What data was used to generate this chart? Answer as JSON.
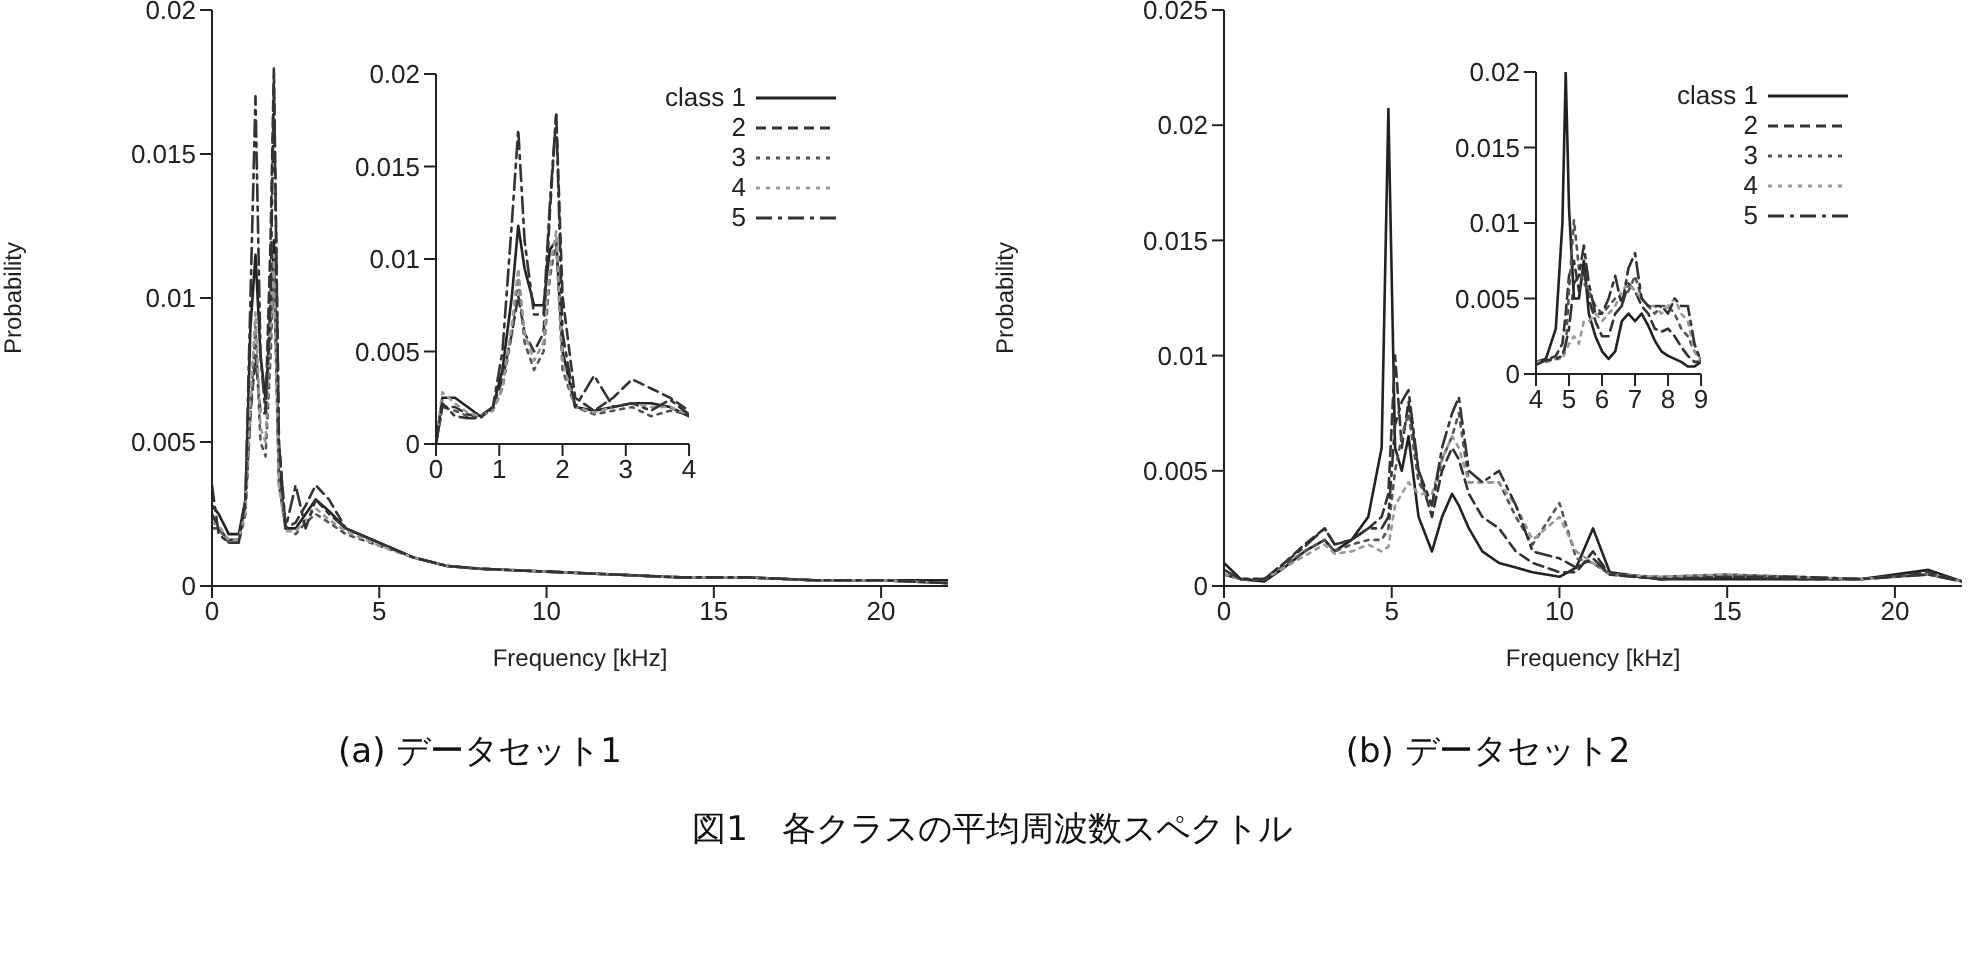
{
  "chart_data": [
    {
      "type": "line",
      "xlabel": "Frequency [kHz]",
      "ylabel": "Probability",
      "xlim": [
        0,
        22
      ],
      "xticks": [
        0,
        5,
        10,
        15,
        20
      ],
      "ylim": [
        0,
        0.02
      ],
      "yticks": [
        0,
        0.005,
        0.01,
        0.015,
        0.02
      ],
      "legend": false,
      "marker": "none",
      "annotations": [
        "(a) データセット1",
        "図1　各クラスの平均周波数スペクトル"
      ],
      "x": [
        0,
        0.2,
        0.5,
        0.8,
        1.0,
        1.15,
        1.3,
        1.45,
        1.6,
        1.75,
        1.85,
        2.0,
        2.2,
        2.5,
        2.8,
        3.1,
        3.5,
        4,
        5,
        6,
        7,
        8,
        10,
        12,
        14,
        16,
        18,
        20,
        22
      ],
      "series": [
        {
          "color": "#222222",
          "line_style": "solid",
          "values": [
            0.0028,
            0.0025,
            0.0018,
            0.0018,
            0.003,
            0.009,
            0.0115,
            0.008,
            0.0065,
            0.009,
            0.012,
            0.004,
            0.002,
            0.002,
            0.0025,
            0.003,
            0.0026,
            0.002,
            0.0015,
            0.001,
            0.0007,
            0.0006,
            0.0005,
            0.0004,
            0.0003,
            0.0003,
            0.0002,
            0.0002,
            0.0002
          ]
        },
        {
          "color": "#333333",
          "line_style": "dashed",
          "values": [
            0.0025,
            0.002,
            0.0016,
            0.0016,
            0.0028,
            0.006,
            0.008,
            0.006,
            0.006,
            0.012,
            0.018,
            0.005,
            0.002,
            0.0022,
            0.0028,
            0.0035,
            0.003,
            0.002,
            0.0015,
            0.001,
            0.0007,
            0.0006,
            0.0005,
            0.0004,
            0.0003,
            0.0003,
            0.0002,
            0.0002,
            0.0001
          ]
        },
        {
          "color": "#555555",
          "line_style": "dotted",
          "values": [
            0.002,
            0.002,
            0.0015,
            0.0015,
            0.0025,
            0.006,
            0.009,
            0.005,
            0.0045,
            0.008,
            0.011,
            0.0035,
            0.002,
            0.0018,
            0.0022,
            0.0025,
            0.0022,
            0.0018,
            0.0014,
            0.001,
            0.0007,
            0.0006,
            0.0005,
            0.0004,
            0.0003,
            0.0003,
            0.0002,
            0.0002,
            0.0001
          ]
        },
        {
          "color": "#999999",
          "line_style": "dotted",
          "values": [
            0.0022,
            0.0021,
            0.0016,
            0.0016,
            0.0026,
            0.0065,
            0.0095,
            0.0055,
            0.005,
            0.009,
            0.0115,
            0.0035,
            0.0019,
            0.0019,
            0.0023,
            0.0027,
            0.0023,
            0.0019,
            0.0014,
            0.001,
            0.0007,
            0.0006,
            0.0005,
            0.0004,
            0.0003,
            0.0003,
            0.0002,
            0.0002,
            0.0001
          ]
        },
        {
          "color": "#333333",
          "line_style": "dashdot",
          "values": [
            0.0035,
            0.0018,
            0.0015,
            0.0015,
            0.003,
            0.01,
            0.017,
            0.008,
            0.006,
            0.01,
            0.0175,
            0.005,
            0.002,
            0.0035,
            0.002,
            0.003,
            0.0025,
            0.002,
            0.0015,
            0.001,
            0.0007,
            0.0006,
            0.0005,
            0.0004,
            0.0003,
            0.0003,
            0.0002,
            0.0002,
            0.0001
          ]
        }
      ]
    },
    {
      "type": "line",
      "xlim": [
        0,
        4
      ],
      "xticks": [
        0,
        1,
        2,
        3,
        4
      ],
      "ylim": [
        0,
        0.02
      ],
      "yticks": [
        0,
        0.005,
        0.01,
        0.015,
        0.02
      ],
      "legend": "top right",
      "marker": "none",
      "x": [
        0,
        0.1,
        0.3,
        0.5,
        0.7,
        0.9,
        1.05,
        1.2,
        1.3,
        1.4,
        1.55,
        1.7,
        1.8,
        1.9,
        2.0,
        2.2,
        2.5,
        2.8,
        3.1,
        3.4,
        3.7,
        4
      ],
      "series": [
        {
          "name": "class 1",
          "color": "#222222",
          "line_style": "solid",
          "values": [
            0,
            0.0025,
            0.0025,
            0.002,
            0.0015,
            0.002,
            0.004,
            0.008,
            0.0118,
            0.0095,
            0.0075,
            0.0075,
            0.0105,
            0.011,
            0.005,
            0.002,
            0.0018,
            0.002,
            0.0022,
            0.0022,
            0.002,
            0.0015
          ]
        },
        {
          "name": "2",
          "color": "#333333",
          "line_style": "dashed",
          "values": [
            0,
            0.002,
            0.002,
            0.0016,
            0.0015,
            0.002,
            0.0035,
            0.006,
            0.008,
            0.006,
            0.005,
            0.006,
            0.0125,
            0.0178,
            0.008,
            0.0025,
            0.0018,
            0.0025,
            0.0035,
            0.003,
            0.0025,
            0.0018
          ]
        },
        {
          "name": "3",
          "color": "#555555",
          "line_style": "dotted",
          "values": [
            0,
            0.002,
            0.0018,
            0.0015,
            0.0015,
            0.0018,
            0.003,
            0.006,
            0.009,
            0.0055,
            0.004,
            0.005,
            0.009,
            0.011,
            0.004,
            0.002,
            0.0016,
            0.0018,
            0.002,
            0.0015,
            0.0018,
            0.0016
          ]
        },
        {
          "name": "4",
          "color": "#999999",
          "line_style": "dotted",
          "values": [
            0,
            0.0028,
            0.0022,
            0.0017,
            0.0015,
            0.0018,
            0.003,
            0.0065,
            0.0095,
            0.006,
            0.0045,
            0.0055,
            0.0095,
            0.0115,
            0.0045,
            0.002,
            0.0017,
            0.002,
            0.0022,
            0.002,
            0.002,
            0.0016
          ]
        },
        {
          "name": "5",
          "color": "#333333",
          "line_style": "dashdot",
          "values": [
            0,
            0.0022,
            0.0015,
            0.0014,
            0.0014,
            0.002,
            0.005,
            0.012,
            0.017,
            0.011,
            0.007,
            0.007,
            0.013,
            0.0178,
            0.006,
            0.002,
            0.0037,
            0.002,
            0.0022,
            0.0018,
            0.0024,
            0.0016
          ]
        }
      ]
    },
    {
      "type": "line",
      "xlabel": "Frequency [kHz]",
      "ylabel": "Probability",
      "xlim": [
        0,
        22
      ],
      "xticks": [
        0,
        5,
        10,
        15,
        20
      ],
      "ylim": [
        0,
        0.025
      ],
      "yticks": [
        0,
        0.005,
        0.01,
        0.015,
        0.02,
        0.025
      ],
      "legend": false,
      "marker": "none",
      "annotations": [
        "(b) データセット2"
      ],
      "x": [
        0,
        0.5,
        1.2,
        1.8,
        2.4,
        3.0,
        3.3,
        3.8,
        4.3,
        4.7,
        4.9,
        5.1,
        5.3,
        5.5,
        5.8,
        6.2,
        6.5,
        6.8,
        7.0,
        7.3,
        7.7,
        8.2,
        8.7,
        9.2,
        10.0,
        10.5,
        11.0,
        11.5,
        13,
        15,
        17,
        19,
        21,
        22
      ],
      "series": [
        {
          "color": "#222222",
          "line_style": "solid",
          "values": [
            0.001,
            0.0003,
            0.0002,
            0.0008,
            0.0015,
            0.002,
            0.0015,
            0.002,
            0.003,
            0.006,
            0.0207,
            0.006,
            0.005,
            0.0065,
            0.003,
            0.0015,
            0.003,
            0.004,
            0.0035,
            0.0025,
            0.0015,
            0.001,
            0.0008,
            0.0006,
            0.0004,
            0.0008,
            0.0025,
            0.0006,
            0.0003,
            0.0003,
            0.0003,
            0.0003,
            0.0007,
            0.0002
          ]
        },
        {
          "color": "#333333",
          "line_style": "dashed",
          "values": [
            0.0005,
            0.0003,
            0.0003,
            0.001,
            0.0018,
            0.0025,
            0.0018,
            0.002,
            0.0025,
            0.003,
            0.004,
            0.01,
            0.006,
            0.008,
            0.005,
            0.003,
            0.005,
            0.006,
            0.0055,
            0.004,
            0.003,
            0.0025,
            0.0015,
            0.001,
            0.0006,
            0.0006,
            0.0015,
            0.0005,
            0.0003,
            0.0004,
            0.0003,
            0.0003,
            0.0006,
            0.0002
          ]
        },
        {
          "color": "#555555",
          "line_style": "dotted",
          "values": [
            0.0005,
            0.0003,
            0.0003,
            0.0009,
            0.0015,
            0.002,
            0.0015,
            0.0018,
            0.002,
            0.002,
            0.0025,
            0.005,
            0.0065,
            0.0075,
            0.0045,
            0.0035,
            0.0055,
            0.0065,
            0.0075,
            0.0045,
            0.0045,
            0.0045,
            0.003,
            0.0018,
            0.0036,
            0.0012,
            0.001,
            0.0005,
            0.0004,
            0.0005,
            0.0004,
            0.0003,
            0.0005,
            0.0002
          ]
        },
        {
          "color": "#999999",
          "line_style": "dotted",
          "values": [
            0.0005,
            0.0003,
            0.0003,
            0.0008,
            0.0013,
            0.0018,
            0.0014,
            0.0015,
            0.0018,
            0.0015,
            0.0017,
            0.0035,
            0.004,
            0.0045,
            0.004,
            0.004,
            0.0055,
            0.0065,
            0.006,
            0.0045,
            0.0045,
            0.0045,
            0.0035,
            0.002,
            0.003,
            0.0015,
            0.001,
            0.0005,
            0.0004,
            0.0005,
            0.0004,
            0.0003,
            0.0005,
            0.0002
          ]
        },
        {
          "color": "#333333",
          "line_style": "dashdot",
          "values": [
            0.0007,
            0.0003,
            0.0003,
            0.001,
            0.0017,
            0.0025,
            0.0018,
            0.002,
            0.0025,
            0.0025,
            0.003,
            0.007,
            0.008,
            0.0085,
            0.005,
            0.0035,
            0.006,
            0.0075,
            0.0082,
            0.005,
            0.0045,
            0.005,
            0.0035,
            0.0015,
            0.0012,
            0.0008,
            0.0012,
            0.0005,
            0.0003,
            0.0004,
            0.0004,
            0.0003,
            0.0005,
            0.0002
          ]
        }
      ]
    },
    {
      "type": "line",
      "xlim": [
        4,
        9
      ],
      "xticks": [
        4,
        5,
        6,
        7,
        8,
        9
      ],
      "ylim": [
        0,
        0.02
      ],
      "yticks": [
        0,
        0.005,
        0.01,
        0.015,
        0.02
      ],
      "legend": "top right",
      "marker": "none",
      "x": [
        4,
        4.3,
        4.6,
        4.8,
        4.9,
        5.0,
        5.15,
        5.3,
        5.45,
        5.6,
        5.8,
        6.0,
        6.2,
        6.4,
        6.6,
        6.8,
        7.0,
        7.2,
        7.4,
        7.6,
        7.8,
        8.0,
        8.2,
        8.4,
        8.6,
        8.8,
        9
      ],
      "series": [
        {
          "name": "class 1",
          "color": "#222222",
          "line_style": "solid",
          "values": [
            0.0008,
            0.001,
            0.003,
            0.01,
            0.02,
            0.011,
            0.005,
            0.005,
            0.0075,
            0.004,
            0.0025,
            0.0015,
            0.001,
            0.0015,
            0.0035,
            0.004,
            0.0035,
            0.004,
            0.0032,
            0.0022,
            0.0015,
            0.0012,
            0.001,
            0.0008,
            0.0005,
            0.0005,
            0.0008
          ]
        },
        {
          "name": "2",
          "color": "#333333",
          "line_style": "dashed",
          "values": [
            0.0008,
            0.0009,
            0.0012,
            0.002,
            0.004,
            0.0065,
            0.0075,
            0.0055,
            0.007,
            0.005,
            0.0035,
            0.0025,
            0.0025,
            0.004,
            0.0045,
            0.006,
            0.0055,
            0.0045,
            0.004,
            0.003,
            0.0028,
            0.003,
            0.0025,
            0.0018,
            0.0012,
            0.0008,
            0.0008
          ]
        },
        {
          "name": "3",
          "color": "#555555",
          "line_style": "dotted",
          "values": [
            0.0008,
            0.0008,
            0.001,
            0.0012,
            0.0018,
            0.0055,
            0.0102,
            0.007,
            0.006,
            0.0055,
            0.0045,
            0.004,
            0.0045,
            0.005,
            0.005,
            0.0055,
            0.0065,
            0.005,
            0.0045,
            0.004,
            0.0045,
            0.0045,
            0.004,
            0.003,
            0.0025,
            0.0015,
            0.001
          ]
        },
        {
          "name": "4",
          "color": "#999999",
          "line_style": "dotted",
          "values": [
            0.0008,
            0.0008,
            0.001,
            0.001,
            0.0015,
            0.002,
            0.0025,
            0.002,
            0.0035,
            0.0035,
            0.004,
            0.0035,
            0.004,
            0.0045,
            0.0055,
            0.006,
            0.0055,
            0.005,
            0.0045,
            0.0045,
            0.004,
            0.0045,
            0.005,
            0.004,
            0.0035,
            0.0015,
            0.0008
          ]
        },
        {
          "name": "5",
          "color": "#333333",
          "line_style": "dashdot",
          "values": [
            0.0006,
            0.0009,
            0.001,
            0.0012,
            0.002,
            0.003,
            0.006,
            0.0065,
            0.0085,
            0.006,
            0.004,
            0.004,
            0.005,
            0.0065,
            0.0045,
            0.007,
            0.008,
            0.005,
            0.0045,
            0.0045,
            0.0045,
            0.004,
            0.005,
            0.0045,
            0.0045,
            0.002,
            0.0008
          ]
        }
      ]
    }
  ]
}
